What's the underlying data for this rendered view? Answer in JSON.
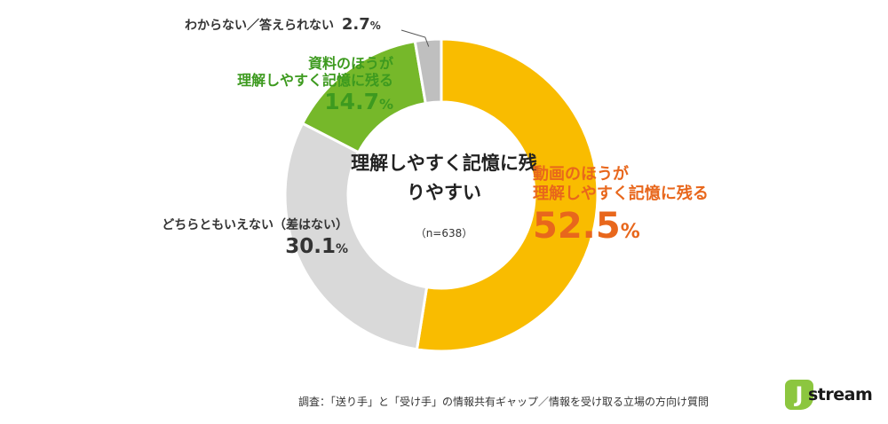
{
  "chart_data": {
    "type": "pie",
    "variant": "donut",
    "title": "理解しやすく記憶に残りやすい",
    "note": "（n=638）",
    "slices": [
      {
        "label": "動画のほうが理解しやすく記憶に残る",
        "label_line1": "動画のほうが",
        "label_line2": "理解しやすく記憶に残る",
        "value": 52.5,
        "value_text": "52.5",
        "unit": "%",
        "color": "#f9bc00",
        "label_color": "#e8671c"
      },
      {
        "label": "どちらともいえない（差はない）",
        "label_line1": "どちらともいえない（差はない）",
        "value": 30.1,
        "value_text": "30.1",
        "unit": "%",
        "color": "#d9d9d9",
        "label_color": "#333333"
      },
      {
        "label": "資料のほうが理解しやすく記憶に残る",
        "label_line1": "資料のほうが",
        "label_line2": "理解しやすく記憶に残る",
        "value": 14.7,
        "value_text": "14.7",
        "unit": "%",
        "color": "#76b82a",
        "label_color": "#3d9a1f"
      },
      {
        "label": "わからない／答えられない",
        "label_line1": "わからない／答えられない",
        "value": 2.7,
        "value_text": "2.7",
        "unit": "%",
        "color": "#bfbfbf",
        "label_color": "#333333"
      }
    ]
  },
  "footer": {
    "source": "調査：「送り手」と「受け手」の情報共有ギャップ／情報を受け取る立場の方向け質問"
  },
  "logo": {
    "mark": "J",
    "text": "stream",
    "color": "#8cc63f"
  }
}
